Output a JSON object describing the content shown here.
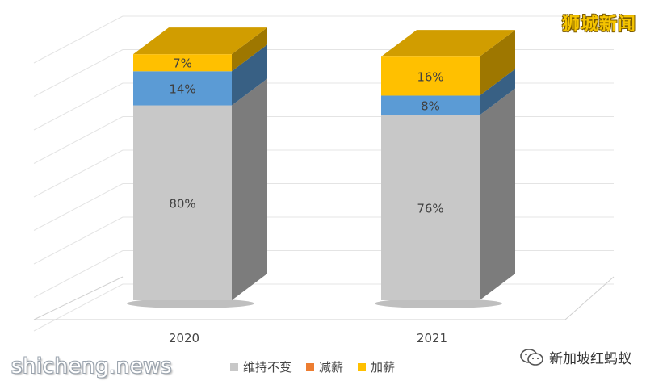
{
  "chart_data": {
    "type": "bar",
    "stacked": true,
    "style": "3d",
    "categories": [
      "2020",
      "2021"
    ],
    "series": [
      {
        "name": "维持不变",
        "values": [
          80,
          76
        ],
        "color": "#c8c8c8"
      },
      {
        "name": "减薪",
        "values": [
          0,
          0
        ],
        "color": "#ed7d31"
      },
      {
        "name": "加薪",
        "values": [
          7,
          16
        ],
        "color": "#ffc000"
      }
    ],
    "unlegended_series": {
      "values": [
        14,
        8
      ],
      "color": "#5b9bd5"
    },
    "segment_order_bottom_to_top": [
      "维持不变",
      "unlegended",
      "加薪"
    ],
    "data_labels": [
      [
        "80%",
        "14%",
        "7%"
      ],
      [
        "76%",
        "8%",
        "16%"
      ]
    ],
    "ylim": [
      0,
      110
    ],
    "grid": true,
    "legend_position": "bottom"
  },
  "watermarks": {
    "top_right": "狮城新闻",
    "bottom_left": "shicheng.news",
    "bottom_right": "新加坡红蚂蚁"
  }
}
